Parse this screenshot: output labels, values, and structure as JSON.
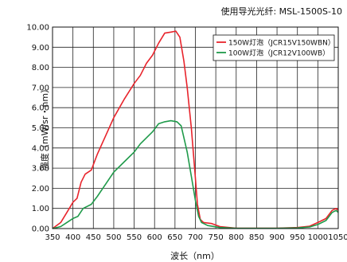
{
  "note": "使用导光光纤: MSL-1500S-10",
  "chart_data": {
    "type": "line",
    "xlabel": "波长（nm）",
    "ylabel": "强度（mW/sr・nm）",
    "xlim": [
      350,
      1050
    ],
    "ylim": [
      0,
      10
    ],
    "xticks": [
      "350",
      "400",
      "450",
      "500",
      "550",
      "600",
      "650",
      "700",
      "750",
      "800",
      "850",
      "900",
      "950",
      "1000",
      "1050"
    ],
    "yticks": [
      "0.00",
      "1.00",
      "2.00",
      "3.00",
      "4.00",
      "5.00",
      "6.00",
      "7.00",
      "8.00",
      "9.00",
      "10.00"
    ],
    "grid": true,
    "legend_position": "top-right",
    "series": [
      {
        "name": "150W灯泡（JCR15V150WBN）",
        "color": "#e8242c",
        "points": [
          [
            350,
            0.0
          ],
          [
            370,
            0.3
          ],
          [
            385,
            0.8
          ],
          [
            400,
            1.3
          ],
          [
            410,
            1.5
          ],
          [
            420,
            2.3
          ],
          [
            430,
            2.7
          ],
          [
            445,
            2.9
          ],
          [
            460,
            3.7
          ],
          [
            480,
            4.6
          ],
          [
            500,
            5.5
          ],
          [
            525,
            6.4
          ],
          [
            550,
            7.2
          ],
          [
            565,
            7.6
          ],
          [
            580,
            8.2
          ],
          [
            595,
            8.6
          ],
          [
            610,
            9.2
          ],
          [
            625,
            9.7
          ],
          [
            640,
            9.75
          ],
          [
            652,
            9.8
          ],
          [
            662,
            9.5
          ],
          [
            672,
            8.3
          ],
          [
            680,
            7.0
          ],
          [
            690,
            5.0
          ],
          [
            698,
            3.0
          ],
          [
            705,
            1.2
          ],
          [
            712,
            0.45
          ],
          [
            720,
            0.3
          ],
          [
            740,
            0.25
          ],
          [
            760,
            0.1
          ],
          [
            800,
            0.02
          ],
          [
            900,
            0.02
          ],
          [
            950,
            0.05
          ],
          [
            980,
            0.12
          ],
          [
            1000,
            0.3
          ],
          [
            1020,
            0.5
          ],
          [
            1035,
            0.9
          ],
          [
            1045,
            1.0
          ],
          [
            1050,
            0.9
          ]
        ]
      },
      {
        "name": "100W灯泡（JCR12V100WB）",
        "color": "#1f9a4a",
        "points": [
          [
            350,
            0.0
          ],
          [
            370,
            0.1
          ],
          [
            385,
            0.3
          ],
          [
            400,
            0.5
          ],
          [
            412,
            0.6
          ],
          [
            425,
            1.0
          ],
          [
            445,
            1.2
          ],
          [
            460,
            1.6
          ],
          [
            480,
            2.2
          ],
          [
            500,
            2.8
          ],
          [
            525,
            3.3
          ],
          [
            550,
            3.8
          ],
          [
            565,
            4.2
          ],
          [
            580,
            4.5
          ],
          [
            595,
            4.8
          ],
          [
            610,
            5.2
          ],
          [
            625,
            5.3
          ],
          [
            640,
            5.35
          ],
          [
            655,
            5.3
          ],
          [
            665,
            5.1
          ],
          [
            672,
            4.5
          ],
          [
            680,
            3.8
          ],
          [
            690,
            2.6
          ],
          [
            700,
            1.4
          ],
          [
            708,
            0.6
          ],
          [
            715,
            0.3
          ],
          [
            730,
            0.15
          ],
          [
            760,
            0.05
          ],
          [
            800,
            0.01
          ],
          [
            900,
            0.01
          ],
          [
            950,
            0.03
          ],
          [
            980,
            0.08
          ],
          [
            1000,
            0.2
          ],
          [
            1020,
            0.4
          ],
          [
            1035,
            0.8
          ],
          [
            1045,
            0.9
          ],
          [
            1050,
            0.8
          ]
        ]
      }
    ]
  }
}
